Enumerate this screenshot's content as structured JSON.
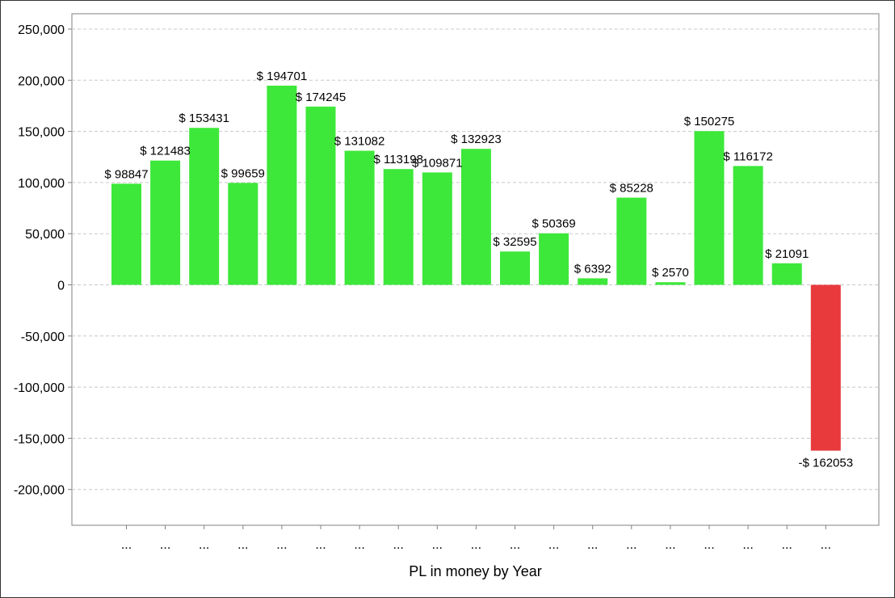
{
  "chart_data": {
    "type": "bar",
    "title": "",
    "xlabel": "PL in money by Year",
    "ylabel": "",
    "ylim": [
      -235000,
      265000
    ],
    "yticks": [
      -200000,
      -150000,
      -100000,
      -50000,
      0,
      50000,
      100000,
      150000,
      200000,
      250000
    ],
    "ytick_labels": [
      "-200,000",
      "-150,000",
      "-100,000",
      "-50,000",
      "0",
      "50,000",
      "100,000",
      "150,000",
      "200,000",
      "250,000"
    ],
    "grid": true,
    "legend": "none",
    "categories": [
      "...",
      "...",
      "...",
      "...",
      "...",
      "...",
      "...",
      "...",
      "...",
      "...",
      "...",
      "...",
      "...",
      "...",
      "...",
      "...",
      "...",
      "...",
      "..."
    ],
    "values": [
      98847,
      121483,
      153431,
      99659,
      194701,
      174245,
      131082,
      113198,
      109871,
      132923,
      32595,
      50369,
      6392,
      85228,
      2570,
      150275,
      116172,
      21091,
      -162053
    ],
    "data_labels": [
      "$ 98847",
      "$ 121483",
      "$ 153431",
      "$ 99659",
      "$ 194701",
      "$ 174245",
      "$ 131082",
      "$ 113198",
      "$ 109871",
      "$ 132923",
      "$ 32595",
      "$ 50369",
      "$ 6392",
      "$ 85228",
      "$ 2570",
      "$ 150275",
      "$ 116172",
      "$ 21091",
      "-$ 162053"
    ],
    "colors": {
      "positive": "#3de83a",
      "negative": "#e8393d",
      "grid": "#c8c8c8",
      "axis": "#808080"
    }
  }
}
